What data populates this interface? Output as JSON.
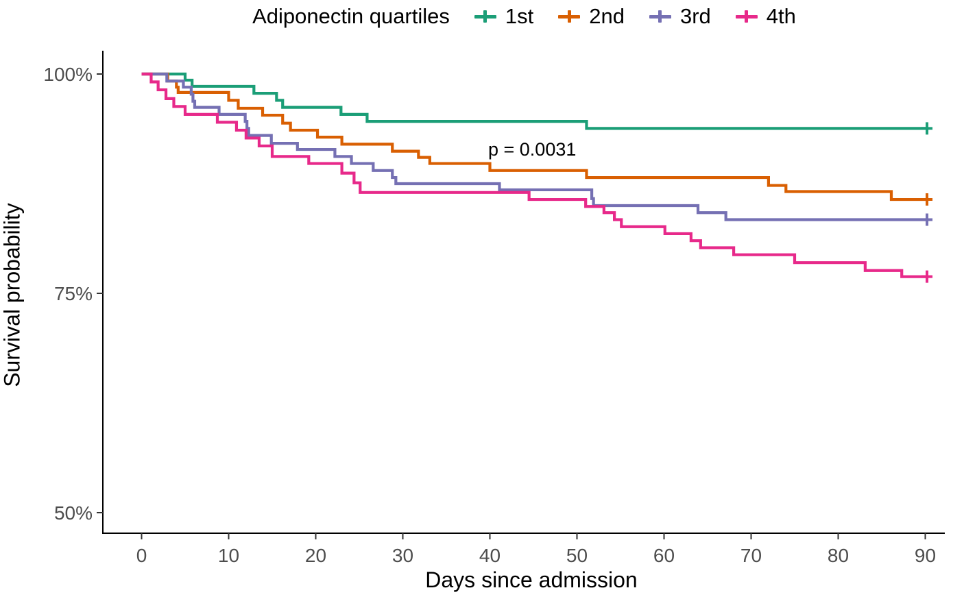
{
  "legend": {
    "title": "Adiponectin quartiles"
  },
  "annotation": {
    "p_value": "p = 0.0031"
  },
  "chart_data": {
    "type": "line",
    "subtype": "kaplan-meier-step",
    "title": "Adiponectin quartiles",
    "xlabel": "Days since admission",
    "ylabel": "Survival probability",
    "xlim": [
      0,
      92
    ],
    "ylim": [
      47,
      101
    ],
    "grid": "off",
    "legend_position": "top",
    "p_value": "p = 0.0031",
    "x_ticks": [
      0,
      10,
      20,
      30,
      40,
      50,
      60,
      70,
      80,
      90
    ],
    "y_ticks": [
      {
        "value": 50,
        "label": "50%"
      },
      {
        "value": 75,
        "label": "75%"
      },
      {
        "value": 100,
        "label": "100%"
      }
    ],
    "series": [
      {
        "name": "1st",
        "color": "#1B9E77",
        "censor_day": 90.2,
        "steps": [
          [
            0,
            100
          ],
          [
            5,
            99.3
          ],
          [
            5.8,
            98.6
          ],
          [
            12.9,
            97.8
          ],
          [
            15.5,
            97.0
          ],
          [
            16.2,
            96.2
          ],
          [
            22.9,
            95.4
          ],
          [
            25.9,
            94.6
          ],
          [
            51.1,
            93.8
          ]
        ]
      },
      {
        "name": "2nd",
        "color": "#D95F02",
        "censor_day": 90.2,
        "steps": [
          [
            0,
            100
          ],
          [
            3,
            99.2
          ],
          [
            4,
            98.5
          ],
          [
            4.2,
            97.9
          ],
          [
            10,
            97.0
          ],
          [
            11.1,
            96.1
          ],
          [
            13.9,
            95.3
          ],
          [
            16.2,
            94.4
          ],
          [
            17.1,
            93.6
          ],
          [
            20.2,
            92.8
          ],
          [
            23,
            92.0
          ],
          [
            28.8,
            91.2
          ],
          [
            31.8,
            90.5
          ],
          [
            33.1,
            89.8
          ],
          [
            40,
            89.0
          ],
          [
            51.1,
            88.2
          ],
          [
            72,
            87.3
          ],
          [
            74,
            86.6
          ],
          [
            86.1,
            85.7
          ]
        ]
      },
      {
        "name": "3rd",
        "color": "#7570B3",
        "censor_day": 90.2,
        "steps": [
          [
            0,
            100
          ],
          [
            2.9,
            99.2
          ],
          [
            4.8,
            98.5
          ],
          [
            5.7,
            97.7
          ],
          [
            5.9,
            96.9
          ],
          [
            6.1,
            96.2
          ],
          [
            8.9,
            95.4
          ],
          [
            11.9,
            94.6
          ],
          [
            12.1,
            93.8
          ],
          [
            12.3,
            93.0
          ],
          [
            14.9,
            92.1
          ],
          [
            17.9,
            91.4
          ],
          [
            22.2,
            90.6
          ],
          [
            24.1,
            89.8
          ],
          [
            26.6,
            89.0
          ],
          [
            28.8,
            88.2
          ],
          [
            29.2,
            87.5
          ],
          [
            41.1,
            86.8
          ],
          [
            51.7,
            85.8
          ],
          [
            51.9,
            85.0
          ],
          [
            63.9,
            84.2
          ],
          [
            67.1,
            83.4
          ]
        ]
      },
      {
        "name": "4th",
        "color": "#E7298A",
        "censor_day": 90.2,
        "steps": [
          [
            0,
            100
          ],
          [
            1.1,
            99.1
          ],
          [
            1.9,
            98.2
          ],
          [
            2.8,
            97.2
          ],
          [
            3.7,
            96.3
          ],
          [
            5,
            95.4
          ],
          [
            8.7,
            94.5
          ],
          [
            10.9,
            93.6
          ],
          [
            12,
            92.7
          ],
          [
            13.5,
            91.8
          ],
          [
            15,
            90.6
          ],
          [
            19.2,
            89.8
          ],
          [
            23,
            88.7
          ],
          [
            24.4,
            87.6
          ],
          [
            25.1,
            86.5
          ],
          [
            44.5,
            85.7
          ],
          [
            51,
            84.9
          ],
          [
            53.1,
            84.2
          ],
          [
            54.3,
            83.4
          ],
          [
            55.1,
            82.6
          ],
          [
            60.1,
            81.8
          ],
          [
            63.1,
            81.0
          ],
          [
            64.2,
            80.2
          ],
          [
            68,
            79.4
          ],
          [
            75,
            78.5
          ],
          [
            83.1,
            77.6
          ],
          [
            87.3,
            76.9
          ]
        ]
      }
    ]
  }
}
